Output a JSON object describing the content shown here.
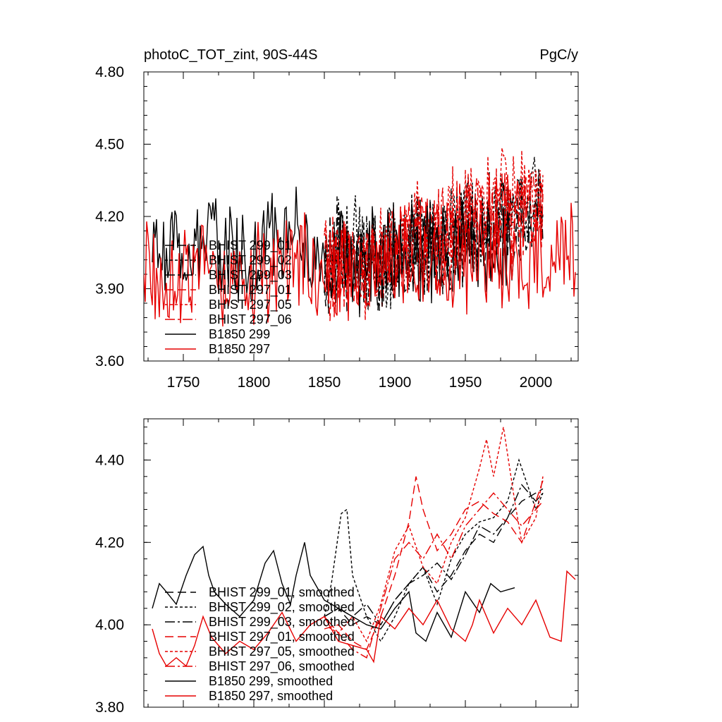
{
  "chart_data": [
    {
      "type": "line",
      "title": "photoC_TOT_zint, 90S-44S",
      "units": "PgC/y",
      "xlim": [
        1722,
        2030
      ],
      "ylim": [
        3.6,
        4.8
      ],
      "xticks": [
        1750,
        1800,
        1850,
        1900,
        1950,
        2000
      ],
      "yticks": [
        3.6,
        3.9,
        4.2,
        4.5,
        4.8
      ],
      "ytick_labels": [
        "3.60",
        "3.90",
        "4.20",
        "4.50",
        "4.80"
      ],
      "legend_position": "lower-left",
      "series": [
        {
          "name": "BHIST 299_01",
          "color": "#000000",
          "dash": "12 6",
          "start": 1850,
          "end": 2005,
          "x": [
            1850,
            1860,
            1870,
            1880,
            1890,
            1900,
            1910,
            1920,
            1930,
            1940,
            1950,
            1960,
            1970,
            1980,
            1990,
            2000,
            2005
          ],
          "y": [
            4.02,
            4.05,
            3.98,
            4.01,
            3.99,
            4.06,
            4.08,
            4.12,
            4.07,
            4.1,
            4.13,
            4.16,
            4.14,
            4.2,
            4.22,
            4.26,
            4.28
          ]
        },
        {
          "name": "BHIST 299_02",
          "color": "#000000",
          "dash": "4 3",
          "start": 1850,
          "end": 2005,
          "x": [
            1850,
            1860,
            1870,
            1880,
            1890,
            1900,
            1910,
            1920,
            1930,
            1940,
            1950,
            1960,
            1970,
            1980,
            1990,
            2000,
            2005
          ],
          "y": [
            4.0,
            4.1,
            4.12,
            4.03,
            3.98,
            4.02,
            4.08,
            4.1,
            4.06,
            4.12,
            4.15,
            4.13,
            4.18,
            4.22,
            4.21,
            4.27,
            4.3
          ]
        },
        {
          "name": "BHIST 299_03",
          "color": "#000000",
          "dash": "14 4 3 4",
          "start": 1850,
          "end": 2005,
          "x": [
            1850,
            1860,
            1870,
            1880,
            1890,
            1900,
            1910,
            1920,
            1930,
            1940,
            1950,
            1960,
            1970,
            1980,
            1990,
            2000,
            2005
          ],
          "y": [
            4.01,
            4.03,
            4.02,
            4.05,
            4.0,
            4.04,
            4.07,
            4.09,
            4.11,
            4.08,
            4.12,
            4.17,
            4.16,
            4.19,
            4.24,
            4.25,
            4.27
          ]
        },
        {
          "name": "BHIST 297_01",
          "color": "#e60000",
          "dash": "12 6",
          "start": 1850,
          "end": 2005,
          "x": [
            1850,
            1860,
            1870,
            1880,
            1890,
            1900,
            1910,
            1920,
            1930,
            1940,
            1950,
            1960,
            1970,
            1980,
            1990,
            2000,
            2005
          ],
          "y": [
            3.99,
            4.01,
            3.97,
            3.95,
            4.0,
            4.08,
            4.15,
            4.12,
            4.1,
            4.14,
            4.18,
            4.2,
            4.19,
            4.23,
            4.22,
            4.26,
            4.24
          ]
        },
        {
          "name": "BHIST 297_05",
          "color": "#e60000",
          "dash": "4 3",
          "start": 1850,
          "end": 2005,
          "x": [
            1850,
            1860,
            1870,
            1880,
            1890,
            1900,
            1910,
            1920,
            1930,
            1940,
            1950,
            1960,
            1970,
            1980,
            1990,
            2000,
            2005
          ],
          "y": [
            4.0,
            3.99,
            4.02,
            3.98,
            4.01,
            4.05,
            4.12,
            4.14,
            4.13,
            4.17,
            4.22,
            4.28,
            4.3,
            4.35,
            4.29,
            4.27,
            4.29
          ]
        },
        {
          "name": "BHIST 297_06",
          "color": "#e60000",
          "dash": "14 4 3 4",
          "start": 1850,
          "end": 2005,
          "x": [
            1850,
            1860,
            1870,
            1880,
            1890,
            1900,
            1910,
            1920,
            1930,
            1940,
            1950,
            1960,
            1970,
            1980,
            1990,
            2000,
            2005
          ],
          "y": [
            4.02,
            3.98,
            4.0,
            3.96,
            4.03,
            4.1,
            4.13,
            4.11,
            4.16,
            4.12,
            4.19,
            4.21,
            4.24,
            4.2,
            4.25,
            4.23,
            4.26
          ]
        },
        {
          "name": "B1850 299",
          "color": "#000000",
          "dash": "",
          "start": 1728,
          "end": 1985,
          "x": [
            1728,
            1740,
            1750,
            1760,
            1770,
            1780,
            1790,
            1800,
            1810,
            1820,
            1830,
            1840,
            1850,
            1860,
            1870,
            1880,
            1890,
            1900,
            1910,
            1920,
            1930,
            1940,
            1950,
            1960,
            1970,
            1980,
            1985
          ],
          "y": [
            4.04,
            4.07,
            4.05,
            4.12,
            4.09,
            4.06,
            4.02,
            4.04,
            4.1,
            4.08,
            4.14,
            4.05,
            4.02,
            4.04,
            4.0,
            4.03,
            3.99,
            4.05,
            4.08,
            4.04,
            4.06,
            4.02,
            4.07,
            4.05,
            4.09,
            4.07,
            4.06
          ]
        },
        {
          "name": "B1850 297",
          "color": "#e60000",
          "dash": "",
          "start": 1722,
          "end": 2028,
          "x": [
            1722,
            1730,
            1740,
            1750,
            1760,
            1770,
            1780,
            1790,
            1800,
            1810,
            1820,
            1830,
            1840,
            1850,
            1860,
            1870,
            1880,
            1890,
            1900,
            1910,
            1920,
            1930,
            1940,
            1950,
            1960,
            1970,
            1980,
            1990,
            2000,
            2010,
            2020,
            2028
          ],
          "y": [
            3.98,
            3.94,
            3.95,
            3.96,
            4.02,
            3.98,
            3.95,
            3.97,
            3.96,
            3.99,
            4.02,
            3.98,
            4.0,
            4.01,
            3.97,
            3.96,
            3.94,
            3.98,
            3.99,
            4.02,
            3.99,
            4.01,
            3.98,
            4.0,
            4.04,
            4.0,
            4.03,
            4.01,
            4.04,
            4.02,
            4.08,
            4.05
          ]
        }
      ]
    },
    {
      "type": "line",
      "title": "",
      "xlim": [
        1722,
        2030
      ],
      "ylim": [
        3.8,
        4.5
      ],
      "xticks": [
        1750,
        1800,
        1850,
        1900,
        1950,
        2000
      ],
      "yticks": [
        3.8,
        4.0,
        4.2,
        4.4
      ],
      "ytick_labels": [
        "3.80",
        "4.00",
        "4.20",
        "4.40"
      ],
      "legend_position": "lower-left",
      "series": [
        {
          "name": "BHIST 299_01, smoothed",
          "color": "#000000",
          "dash": "12 6",
          "x": [
            1850,
            1860,
            1870,
            1880,
            1890,
            1900,
            1910,
            1920,
            1930,
            1940,
            1950,
            1960,
            1970,
            1980,
            1990,
            2000,
            2005
          ],
          "y": [
            4.02,
            4.04,
            4.0,
            4.02,
            4.0,
            4.06,
            4.1,
            4.14,
            4.08,
            4.12,
            4.18,
            4.22,
            4.2,
            4.26,
            4.3,
            4.32,
            4.33
          ]
        },
        {
          "name": "BHIST 299_02, smoothed",
          "color": "#000000",
          "dash": "4 3",
          "x": [
            1850,
            1855,
            1862,
            1866,
            1870,
            1880,
            1890,
            1900,
            1910,
            1920,
            1930,
            1940,
            1950,
            1960,
            1970,
            1980,
            1988,
            1995,
            2000,
            2005
          ],
          "y": [
            4.02,
            4.1,
            4.27,
            4.28,
            4.12,
            4.02,
            3.96,
            4.02,
            4.1,
            4.14,
            4.05,
            4.16,
            4.22,
            4.25,
            4.26,
            4.3,
            4.4,
            4.33,
            4.28,
            4.32
          ]
        },
        {
          "name": "BHIST 299_03, smoothed",
          "color": "#000000",
          "dash": "14 4 3 4",
          "x": [
            1850,
            1860,
            1870,
            1880,
            1890,
            1900,
            1910,
            1920,
            1930,
            1940,
            1950,
            1960,
            1970,
            1980,
            1990,
            2000,
            2005
          ],
          "y": [
            4.02,
            4.04,
            4.02,
            4.05,
            4.0,
            4.06,
            4.1,
            4.12,
            4.15,
            4.11,
            4.17,
            4.24,
            4.22,
            4.26,
            4.34,
            4.3,
            4.32
          ]
        },
        {
          "name": "BHIST 297_01, smoothed",
          "color": "#e60000",
          "dash": "12 6",
          "x": [
            1850,
            1860,
            1870,
            1880,
            1890,
            1900,
            1910,
            1915,
            1920,
            1930,
            1940,
            1950,
            1960,
            1970,
            1980,
            1990,
            2000,
            2005
          ],
          "y": [
            3.99,
            4.0,
            3.96,
            3.94,
            4.02,
            4.12,
            4.25,
            4.36,
            4.28,
            4.18,
            4.22,
            4.28,
            4.3,
            4.27,
            4.25,
            4.2,
            4.3,
            4.35
          ]
        },
        {
          "name": "BHIST 297_05, smoothed",
          "color": "#e60000",
          "dash": "4 3",
          "x": [
            1850,
            1860,
            1870,
            1880,
            1890,
            1900,
            1910,
            1920,
            1930,
            1940,
            1950,
            1960,
            1965,
            1970,
            1977,
            1985,
            1990,
            2000,
            2005
          ],
          "y": [
            4.0,
            3.98,
            4.02,
            3.96,
            4.05,
            4.18,
            4.24,
            4.14,
            4.1,
            4.2,
            4.26,
            4.38,
            4.45,
            4.36,
            4.48,
            4.3,
            4.2,
            4.26,
            4.36
          ]
        },
        {
          "name": "BHIST 297_06, smoothed",
          "color": "#e60000",
          "dash": "14 4 3 4",
          "x": [
            1850,
            1860,
            1870,
            1880,
            1890,
            1900,
            1910,
            1920,
            1930,
            1940,
            1950,
            1960,
            1970,
            1980,
            1990,
            2000,
            2005
          ],
          "y": [
            4.02,
            3.98,
            3.94,
            3.92,
            4.04,
            4.16,
            4.2,
            4.16,
            4.22,
            4.16,
            4.24,
            4.28,
            4.32,
            4.28,
            4.24,
            4.28,
            4.3
          ]
        },
        {
          "name": "B1850 299, smoothed",
          "color": "#000000",
          "dash": "",
          "x": [
            1728,
            1733,
            1738,
            1745,
            1752,
            1758,
            1764,
            1768,
            1772,
            1780,
            1790,
            1800,
            1808,
            1814,
            1820,
            1826,
            1830,
            1836,
            1840,
            1850,
            1860,
            1870,
            1880,
            1890,
            1900,
            1910,
            1915,
            1922,
            1930,
            1940,
            1950,
            1960,
            1968,
            1975,
            1985
          ],
          "y": [
            4.04,
            4.1,
            4.08,
            4.05,
            4.12,
            4.17,
            4.19,
            4.12,
            4.08,
            4.05,
            4.02,
            4.06,
            4.15,
            4.18,
            4.1,
            4.05,
            4.12,
            4.2,
            4.12,
            4.06,
            4.04,
            4.02,
            4.0,
            3.99,
            4.04,
            4.08,
            3.98,
            3.96,
            4.03,
            3.97,
            4.08,
            4.03,
            4.1,
            4.08,
            4.09
          ]
        },
        {
          "name": "B1850 297, smoothed",
          "color": "#e60000",
          "dash": "",
          "x": [
            1728,
            1733,
            1738,
            1745,
            1752,
            1758,
            1764,
            1770,
            1780,
            1790,
            1800,
            1810,
            1820,
            1830,
            1840,
            1850,
            1860,
            1870,
            1880,
            1885,
            1890,
            1900,
            1910,
            1920,
            1930,
            1940,
            1950,
            1955,
            1960,
            1970,
            1980,
            1990,
            2000,
            2010,
            2018,
            2022,
            2028
          ],
          "y": [
            3.99,
            3.93,
            3.9,
            3.92,
            3.9,
            3.95,
            4.02,
            3.97,
            3.93,
            3.96,
            3.94,
            3.98,
            4.03,
            3.96,
            4.0,
            4.02,
            3.96,
            3.95,
            3.94,
            3.91,
            4.02,
            3.99,
            4.04,
            4.0,
            4.06,
            3.99,
            3.96,
            4.0,
            4.06,
            3.98,
            4.04,
            4.0,
            4.06,
            3.97,
            3.96,
            4.13,
            4.11
          ]
        }
      ]
    }
  ]
}
